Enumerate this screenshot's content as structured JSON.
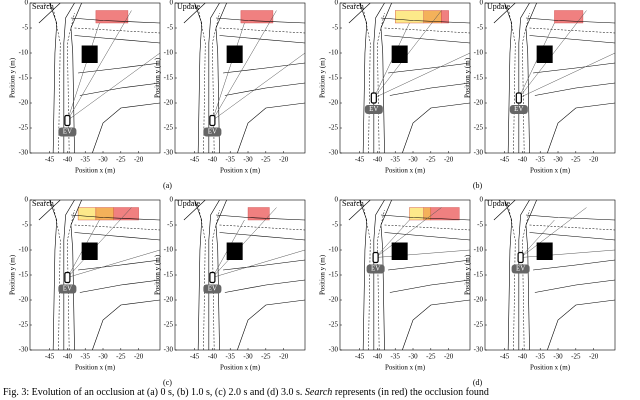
{
  "figure": {
    "axes": {
      "xlabel": "Position x (m)",
      "ylabel": "Position y (m)",
      "xlim": [
        -50.5,
        -14
      ],
      "ylim": [
        -30,
        0
      ],
      "xticks": [
        -45,
        -40,
        -35,
        -30,
        -25,
        -20
      ],
      "yticks": [
        0,
        -5,
        -10,
        -15,
        -20,
        -25,
        -30
      ]
    },
    "panels": [
      {
        "label": "(a)",
        "plots": [
          {
            "title": "Search",
            "vehicle": "EV"
          },
          {
            "title": "Update",
            "vehicle": "EV"
          }
        ]
      },
      {
        "label": "(b)",
        "plots": [
          {
            "title": "Search",
            "vehicle": "EV"
          },
          {
            "title": "Update",
            "vehicle": "EV"
          }
        ]
      },
      {
        "label": "(c)",
        "plots": [
          {
            "title": "Search",
            "vehicle": "EV"
          },
          {
            "title": "Update",
            "vehicle": "EV"
          }
        ]
      },
      {
        "label": "(d)",
        "plots": [
          {
            "title": "Search",
            "vehicle": "EV"
          },
          {
            "title": "Update",
            "vehicle": "EV"
          }
        ]
      }
    ],
    "caption": {
      "prefix": "Fig. 3: Evolution of an occlusion at (a) 0 s, (b) 1.0 s, (c) 2.0 s and (d) 3.0 s. ",
      "emphasis": "Search",
      "suffix": " represents (in red) the occlusion found"
    }
  }
}
